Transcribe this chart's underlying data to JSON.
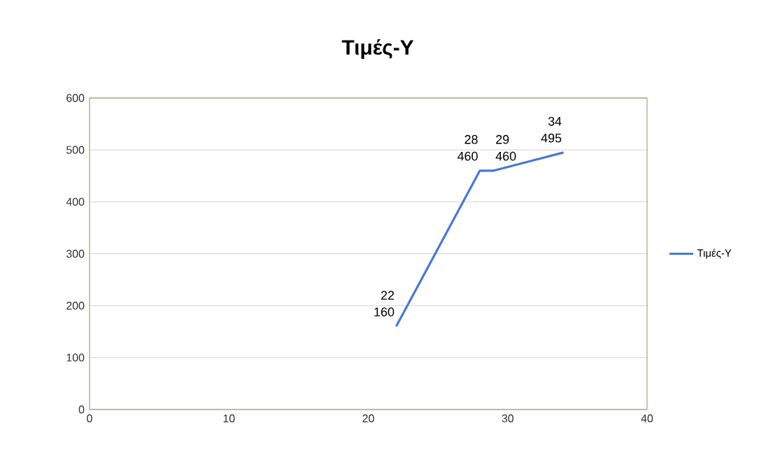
{
  "chart_data": {
    "type": "line",
    "title": "Τιμές-Υ",
    "x": [
      22,
      28,
      29,
      34
    ],
    "series": [
      {
        "name": "Τιμές-Υ",
        "color": "#4a78d0",
        "values": [
          160,
          460,
          460,
          495
        ]
      }
    ],
    "xlim": [
      0,
      40
    ],
    "xticks": [
      0,
      10,
      20,
      30,
      40
    ],
    "ylim": [
      0,
      600
    ],
    "yticks": [
      0,
      100,
      200,
      300,
      400,
      500,
      600
    ],
    "grid": "y",
    "legend": "right",
    "marker": "none",
    "line_style": "solid",
    "data_labels": true,
    "annotations": [
      {
        "text": "22",
        "x": 22,
        "y": 160
      },
      {
        "text": "28",
        "x": 28,
        "y": 460
      },
      {
        "text": "29",
        "x": 29,
        "y": 460
      },
      {
        "text": "34",
        "x": 34,
        "y": 495
      }
    ]
  }
}
